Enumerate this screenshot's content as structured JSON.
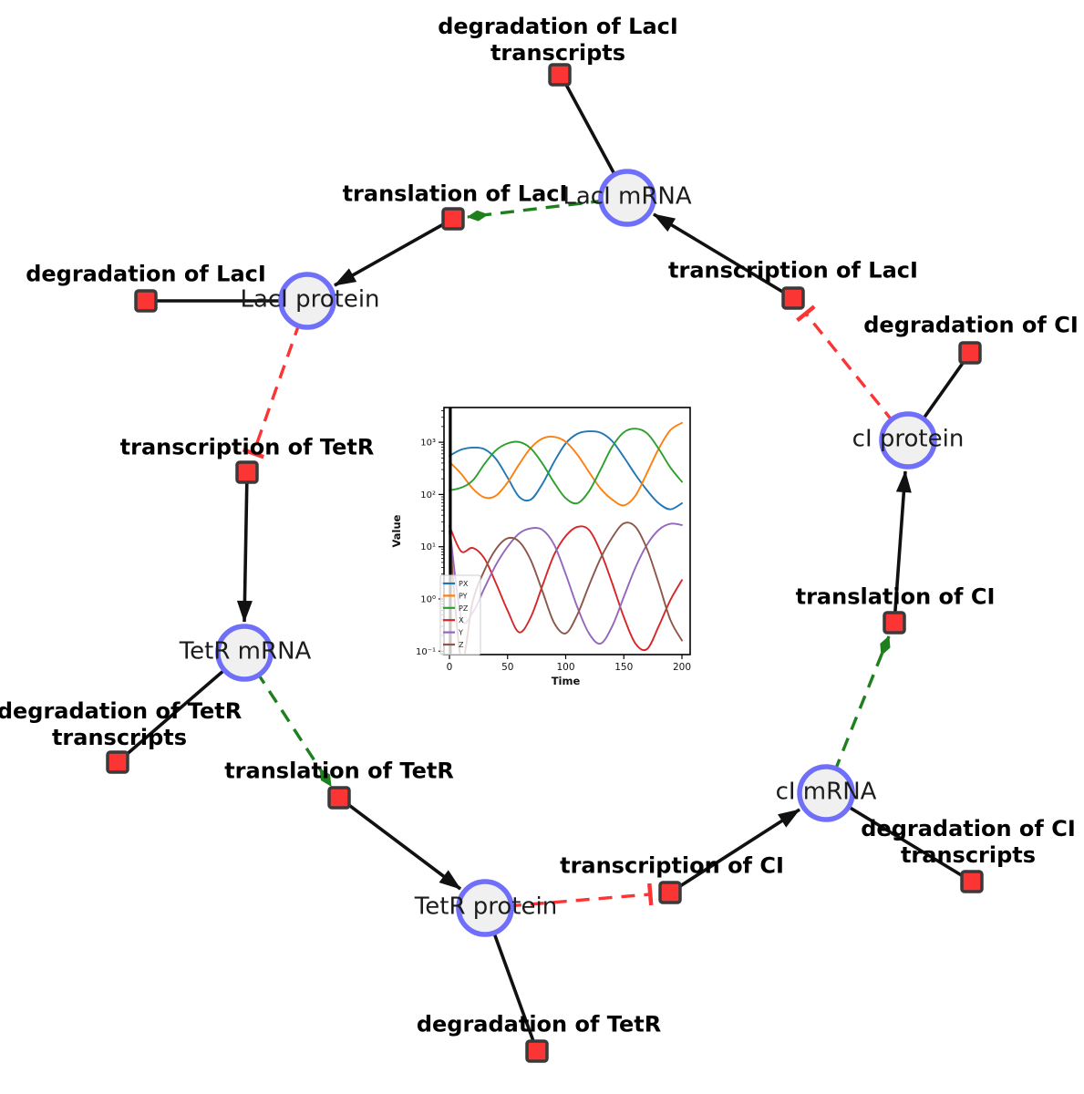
{
  "diagram": {
    "species": {
      "laci_mrna": {
        "label": "LacI mRNA"
      },
      "laci_protein": {
        "label": "LacI protein"
      },
      "tetr_mrna": {
        "label": "TetR mRNA"
      },
      "tetr_protein": {
        "label": "TetR protein"
      },
      "ci_mrna": {
        "label": "cI mRNA"
      },
      "ci_protein": {
        "label": "cI protein"
      }
    },
    "reactions": {
      "degradation_of_laci_transcripts": {
        "label": "degradation of LacI transcripts"
      },
      "translation_of_laci": {
        "label": "translation of LacI"
      },
      "degradation_of_laci": {
        "label": "degradation of LacI"
      },
      "transcription_of_laci": {
        "label": "transcription of LacI"
      },
      "degradation_of_ci": {
        "label": "degradation of CI"
      },
      "transcription_of_tetr": {
        "label": "transcription of TetR"
      },
      "degradation_of_tetr_transcripts": {
        "label": "degradation of TetR transcripts"
      },
      "translation_of_tetr": {
        "label": "translation of TetR"
      },
      "degradation_of_tetr": {
        "label": "degradation of TetR"
      },
      "transcription_of_ci": {
        "label": "transcription of CI"
      },
      "degradation_of_ci_transcripts": {
        "label": "degradation of CI transcripts"
      },
      "translation_of_ci": {
        "label": "translation of CI"
      }
    },
    "colors": {
      "node_fill": "#f0f0f0",
      "node_stroke": "#6f6ffa",
      "reaction_fill": "#fb3434",
      "reaction_stroke": "#3a3a3a",
      "edge_black": "#111111",
      "activation_green": "#1d801d",
      "inhibition_red": "#fb3434"
    }
  },
  "chart_data": {
    "type": "line",
    "yscale": "log",
    "xlabel": "Time",
    "ylabel": "Value",
    "xlim": [
      0,
      200
    ],
    "ylim": [
      0.08,
      4500
    ],
    "xticks": [
      0,
      50,
      100,
      150,
      200
    ],
    "yticks": [
      {
        "exp": 3,
        "label": "10³"
      },
      {
        "exp": 2,
        "label": "10²"
      },
      {
        "exp": 1,
        "label": "10¹"
      },
      {
        "exp": 0,
        "label": "10⁰"
      },
      {
        "exp": -1,
        "label": "10⁻¹"
      }
    ],
    "legend_position": "lower left",
    "grid": false,
    "initial_line_t": 0.7,
    "t": [
      0,
      10,
      20,
      30,
      40,
      50,
      60,
      70,
      80,
      90,
      100,
      110,
      120,
      130,
      140,
      150,
      160,
      170,
      180,
      190,
      200
    ],
    "series": [
      {
        "name": "PX",
        "color": "#1f77b4",
        "values": [
          550,
          720,
          790,
          740,
          480,
          210,
          90,
          80,
          160,
          420,
          950,
          1450,
          1620,
          1520,
          1050,
          520,
          240,
          120,
          68,
          52,
          68
        ]
      },
      {
        "name": "PY",
        "color": "#ff7f0e",
        "values": [
          420,
          250,
          130,
          88,
          95,
          170,
          380,
          780,
          1180,
          1270,
          1020,
          580,
          270,
          130,
          80,
          62,
          95,
          260,
          750,
          1700,
          2350
        ]
      },
      {
        "name": "PZ",
        "color": "#2ca02c",
        "values": [
          120,
          135,
          185,
          380,
          700,
          950,
          1010,
          760,
          390,
          170,
          85,
          68,
          115,
          300,
          820,
          1550,
          1820,
          1480,
          750,
          330,
          175
        ]
      },
      {
        "name": "X",
        "color": "#d62728",
        "values": [
          25,
          8.2,
          9.5,
          6,
          2,
          0.6,
          0.23,
          0.45,
          1.8,
          7,
          16,
          24,
          21,
          8,
          2,
          0.45,
          0.14,
          0.11,
          0.3,
          0.95,
          2.3
        ]
      },
      {
        "name": "Y",
        "color": "#9467bd",
        "values": [
          25,
          0.45,
          0.55,
          1.6,
          4.5,
          10,
          18,
          22.5,
          21,
          11,
          3,
          0.7,
          0.22,
          0.14,
          0.3,
          1.1,
          4,
          11,
          21,
          27.5,
          26
        ]
      },
      {
        "name": "Z",
        "color": "#8c564b",
        "values": [
          20,
          0.07,
          0.9,
          3.5,
          9,
          14.5,
          12.5,
          5.5,
          1.4,
          0.35,
          0.22,
          0.5,
          1.8,
          6,
          15,
          28,
          24,
          9,
          2,
          0.4,
          0.16
        ]
      }
    ]
  }
}
